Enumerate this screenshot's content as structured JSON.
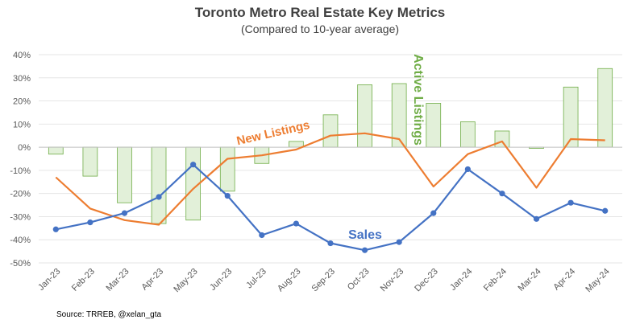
{
  "title": "Toronto Metro Real Estate Key Metrics",
  "subtitle": "(Compared to 10-year average)",
  "source": "Source: TRREB, @xelan_gta",
  "colors": {
    "sales": "#4472C4",
    "new_listings": "#ED7D31",
    "active_listings_fill": "#E2F0D9",
    "active_listings_stroke": "#70AD47",
    "annotation_active": "#70AD47"
  },
  "chart_data": {
    "type": "bar+line",
    "categories": [
      "Jan-23",
      "Feb-23",
      "Mar-23",
      "Apr-23",
      "May-23",
      "Jun-23",
      "Jul-23",
      "Aug-23",
      "Sep-23",
      "Oct-23",
      "Nov-23",
      "Dec-23",
      "Jan-24",
      "Feb-24",
      "Mar-24",
      "Apr-24",
      "May-24"
    ],
    "ylim": [
      -50,
      40
    ],
    "yticks": [
      -50,
      -40,
      -30,
      -20,
      -10,
      0,
      10,
      20,
      30,
      40
    ],
    "ytick_labels": [
      "-50%",
      "-40%",
      "-30%",
      "-20%",
      "-10%",
      "0%",
      "10%",
      "20%",
      "30%",
      "40%"
    ],
    "series": [
      {
        "name": "Active Listings",
        "type": "bar",
        "values": [
          -3,
          -12.5,
          -24,
          -33,
          -31.5,
          -19,
          -7,
          2.5,
          14,
          27,
          27.5,
          19,
          11,
          7,
          -0.5,
          26,
          34
        ]
      },
      {
        "name": "New Listings",
        "type": "line",
        "values": [
          -13,
          -26.5,
          -31.5,
          -33.5,
          -18,
          -5,
          -3.5,
          -1,
          5,
          6,
          3.5,
          -17,
          -3,
          2.5,
          -17.5,
          3.5,
          3
        ]
      },
      {
        "name": "Sales",
        "type": "line",
        "markers": true,
        "values": [
          -35.5,
          -32.5,
          -28.5,
          -21.5,
          -7.5,
          -21,
          -38,
          -33,
          -41.5,
          -44.5,
          -41,
          -28.5,
          -9.5,
          -20,
          -31,
          -24,
          -27.5
        ]
      }
    ],
    "annotations": {
      "sales": "Sales",
      "new_listings": "New Listings",
      "active_listings": "Active Listings"
    }
  }
}
